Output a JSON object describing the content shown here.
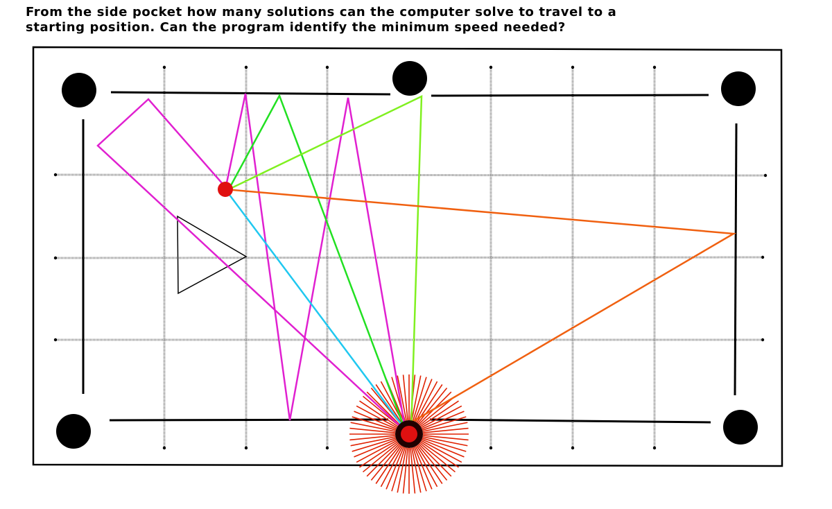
{
  "header": {
    "title_lines": [
      "From the side pocket how many solutions can the computer solve to travel to a",
      "starting position.  Can the program identify the minimum speed needed?"
    ]
  }
}
